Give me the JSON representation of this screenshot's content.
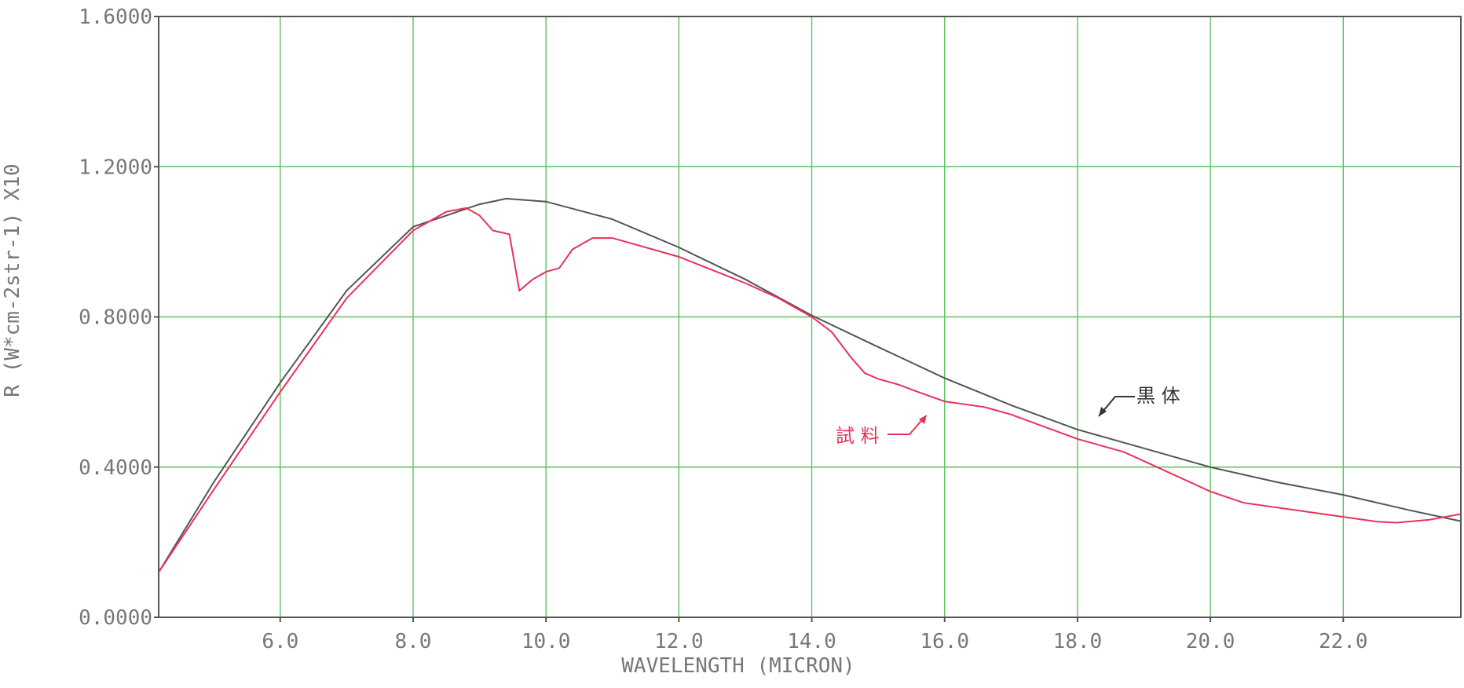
{
  "chart_data": {
    "type": "line",
    "xlabel": "WAVELENGTH (MICRON)",
    "ylabel": "R (W*cm-2str-1) X10",
    "annotations": [
      "黒 体",
      "試 料"
    ],
    "xlim": [
      4.17,
      23.77
    ],
    "ylim": [
      0,
      1.6
    ],
    "xticks": [
      {
        "value": 6,
        "label": "6.0"
      },
      {
        "value": 8,
        "label": "8.0"
      },
      {
        "value": 10,
        "label": "10.0"
      },
      {
        "value": 12,
        "label": "12.0"
      },
      {
        "value": 14,
        "label": "14.0"
      },
      {
        "value": 16,
        "label": "16.0"
      },
      {
        "value": 18,
        "label": "18.0"
      },
      {
        "value": 20,
        "label": "20.0"
      },
      {
        "value": 22,
        "label": "22.0"
      }
    ],
    "yticks": [
      {
        "value": 0,
        "label": "0.0000"
      },
      {
        "value": 0.4,
        "label": "0.4000"
      },
      {
        "value": 0.8,
        "label": "0.8000"
      },
      {
        "value": 1.2,
        "label": "1.2000"
      },
      {
        "value": 1.6,
        "label": "1.6000"
      }
    ],
    "grid": true,
    "series": [
      {
        "color": "#555555",
        "x": [
          4.17,
          5,
          6,
          7,
          8,
          9,
          9.4,
          10,
          11,
          12,
          13,
          14,
          15,
          16,
          17,
          18,
          19,
          20,
          21,
          22,
          23,
          23.77
        ],
        "values": [
          0.12,
          0.36,
          0.625,
          0.87,
          1.04,
          1.1,
          1.115,
          1.107,
          1.06,
          0.985,
          0.9,
          0.804,
          0.72,
          0.637,
          0.565,
          0.5,
          0.45,
          0.4,
          0.36,
          0.326,
          0.285,
          0.256
        ]
      },
      {
        "color": "#e8325a",
        "x": [
          4.17,
          5,
          6,
          7,
          8,
          8.5,
          8.8,
          9.0,
          9.2,
          9.45,
          9.6,
          9.8,
          10.0,
          10.2,
          10.4,
          10.7,
          11.0,
          12.0,
          13.0,
          13.5,
          14.0,
          14.3,
          14.6,
          14.8,
          15.0,
          15.3,
          15.6,
          16.0,
          16.6,
          17.0,
          18.0,
          18.7,
          19.2,
          20.0,
          20.5,
          21.5,
          22.5,
          22.8,
          23.3,
          23.77
        ],
        "values": [
          0.12,
          0.34,
          0.6,
          0.85,
          1.03,
          1.08,
          1.09,
          1.07,
          1.03,
          1.02,
          0.87,
          0.9,
          0.92,
          0.93,
          0.98,
          1.01,
          1.01,
          0.96,
          0.89,
          0.85,
          0.8,
          0.76,
          0.69,
          0.65,
          0.635,
          0.62,
          0.6,
          0.575,
          0.56,
          0.54,
          0.475,
          0.44,
          0.4,
          0.335,
          0.305,
          0.28,
          0.255,
          0.252,
          0.26,
          0.275
        ]
      }
    ]
  }
}
